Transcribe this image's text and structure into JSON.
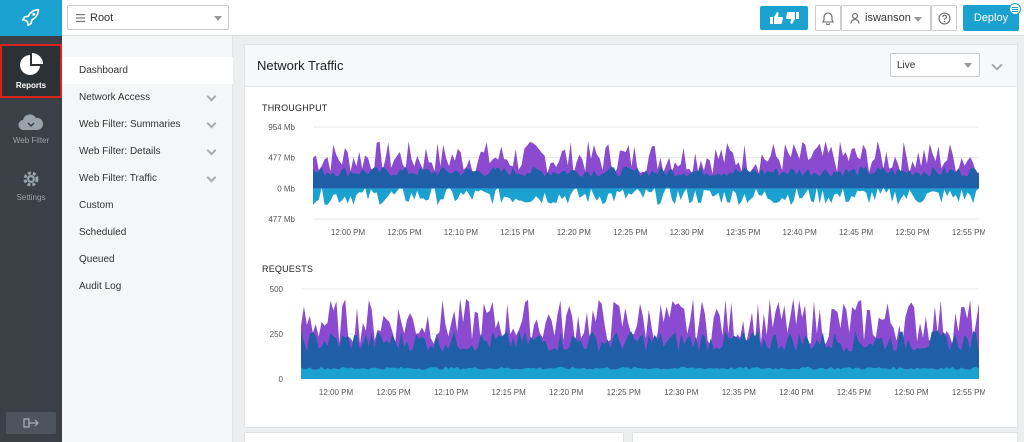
{
  "topbar": {
    "root_select": "Root",
    "user": "iswanson",
    "deploy_label": "Deploy"
  },
  "rail": {
    "items": [
      {
        "label": "Reports",
        "icon": "pie-chart-icon"
      },
      {
        "label": "Web Filter",
        "icon": "cloud-icon"
      },
      {
        "label": "Settings",
        "icon": "gear-icon"
      }
    ]
  },
  "subnav": {
    "items": [
      {
        "label": "Dashboard"
      },
      {
        "label": "Network Access"
      },
      {
        "label": "Web Filter: Summaries"
      },
      {
        "label": "Web Filter: Details"
      },
      {
        "label": "Web Filter: Traffic"
      },
      {
        "label": "Custom"
      },
      {
        "label": "Scheduled"
      },
      {
        "label": "Queued"
      },
      {
        "label": "Audit Log"
      }
    ]
  },
  "panel": {
    "title": "Network Traffic",
    "range_select": "Live"
  },
  "colors": {
    "accent": "#1ba1d0",
    "purple": "#8a4bd0",
    "blue": "#1e5fa8",
    "cyan": "#1ba1d0"
  },
  "chart_data": [
    {
      "type": "area",
      "title": "THROUGHPUT",
      "y_ticks": [
        "954 Mb",
        "477 Mb",
        "0 Mb",
        "477 Mb"
      ],
      "x_ticks": [
        "12:00 PM",
        "12:05 PM",
        "12:10 PM",
        "12:15 PM",
        "12:20 PM",
        "12:25 PM",
        "12:30 PM",
        "12:35 PM",
        "12:40 PM",
        "12:45 PM",
        "12:50 PM",
        "12:55 PM"
      ],
      "ylim": [
        -477,
        954
      ],
      "series": [
        {
          "color": "#8a4bd0",
          "baseline": 480,
          "variance": 260
        },
        {
          "color": "#1e5fa8",
          "baseline": 260,
          "variance": 80
        },
        {
          "color": "#1ba1d0",
          "baseline": -120,
          "variance": 140
        }
      ]
    },
    {
      "type": "area",
      "title": "REQUESTS",
      "y_ticks": [
        "500",
        "250",
        "0"
      ],
      "x_ticks": [
        "12:00 PM",
        "12:05 PM",
        "12:10 PM",
        "12:15 PM",
        "12:20 PM",
        "12:25 PM",
        "12:30 PM",
        "12:35 PM",
        "12:40 PM",
        "12:45 PM",
        "12:50 PM",
        "12:55 PM"
      ],
      "ylim": [
        0,
        500
      ],
      "series": [
        {
          "color": "#8a4bd0",
          "baseline": 320,
          "variance": 130
        },
        {
          "color": "#1e5fa8",
          "baseline": 210,
          "variance": 60
        },
        {
          "color": "#1ba1d0",
          "baseline": 60,
          "variance": 8
        }
      ]
    }
  ]
}
